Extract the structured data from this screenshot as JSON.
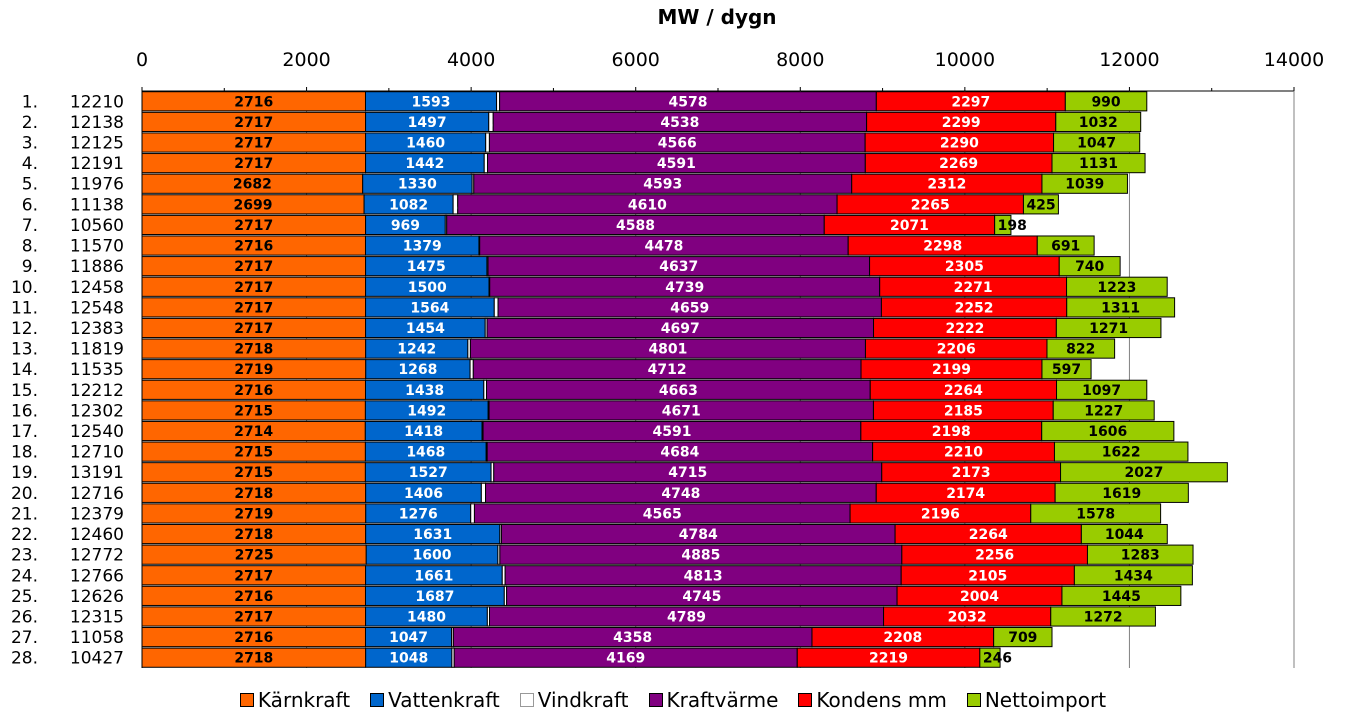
{
  "chart_data": {
    "type": "bar",
    "orientation": "horizontal",
    "stacked": true,
    "title": "MW / dygn",
    "xlim": [
      0,
      14000
    ],
    "xticks": [
      0,
      2000,
      4000,
      6000,
      8000,
      10000,
      12000,
      14000
    ],
    "grid": "vertical",
    "legend_position": "bottom",
    "categories": [
      "1. 12210",
      "2. 12138",
      "3. 12125",
      "4. 12191",
      "5. 11976",
      "6. 11138",
      "7. 10560",
      "8. 11570",
      "9. 11886",
      "10. 12458",
      "11. 12548",
      "12. 12383",
      "13. 11819",
      "14. 11535",
      "15. 12212",
      "16. 12302",
      "17. 12540",
      "18. 12710",
      "19. 13191",
      "20. 12716",
      "21. 12379",
      "22. 12460",
      "23. 12772",
      "24. 12766",
      "25. 12626",
      "26. 12315",
      "27. 11058",
      "28. 10427"
    ],
    "series": [
      {
        "name": "Kärnkraft",
        "color": "#ff6600",
        "label_color": "#000000",
        "values": [
          2716,
          2717,
          2717,
          2717,
          2682,
          2699,
          2717,
          2716,
          2717,
          2717,
          2717,
          2717,
          2718,
          2719,
          2716,
          2715,
          2714,
          2715,
          2715,
          2718,
          2719,
          2718,
          2725,
          2717,
          2716,
          2717,
          2716,
          2718
        ]
      },
      {
        "name": "Vattenkraft",
        "color": "#0066cc",
        "label_color": "#ffffff",
        "values": [
          1593,
          1497,
          1460,
          1442,
          1330,
          1082,
          969,
          1379,
          1475,
          1500,
          1564,
          1454,
          1242,
          1268,
          1438,
          1492,
          1418,
          1468,
          1527,
          1406,
          1276,
          1631,
          1600,
          1661,
          1687,
          1480,
          1047,
          1048
        ]
      },
      {
        "name": "Vindkraft",
        "color": "#ffffff",
        "label_color": "#ffffff",
        "values": [
          37,
          54,
          45,
          40,
          20,
          56,
          17,
          9,
          13,
          9,
          46,
          22,
          31,
          39,
          33,
          11,
          13,
          12,
          33,
          51,
          45,
          19,
          24,
          35,
          28,
          26,
          21,
          28
        ]
      },
      {
        "name": "Kraftvärme",
        "color": "#800080",
        "label_color": "#ffffff",
        "values": [
          4578,
          4538,
          4566,
          4591,
          4593,
          4610,
          4588,
          4478,
          4637,
          4739,
          4659,
          4697,
          4801,
          4712,
          4663,
          4671,
          4591,
          4684,
          4715,
          4748,
          4565,
          4784,
          4885,
          4813,
          4745,
          4789,
          4358,
          4169
        ]
      },
      {
        "name": "Kondens mm",
        "color": "#ff0000",
        "label_color": "#ffffff",
        "values": [
          2297,
          2299,
          2290,
          2269,
          2312,
          2265,
          2071,
          2298,
          2305,
          2271,
          2252,
          2222,
          2206,
          2199,
          2264,
          2185,
          2198,
          2210,
          2173,
          2174,
          2196,
          2264,
          2256,
          2105,
          2004,
          2032,
          2208,
          2219
        ]
      },
      {
        "name": "Nettoimport",
        "color": "#99cc00",
        "label_color": "#000000",
        "values": [
          990,
          1032,
          1047,
          1131,
          1039,
          425,
          198,
          691,
          740,
          1223,
          1311,
          1271,
          822,
          597,
          1097,
          1227,
          1606,
          1622,
          2027,
          1619,
          1578,
          1044,
          1283,
          1434,
          1445,
          1272,
          709,
          246
        ]
      }
    ]
  }
}
